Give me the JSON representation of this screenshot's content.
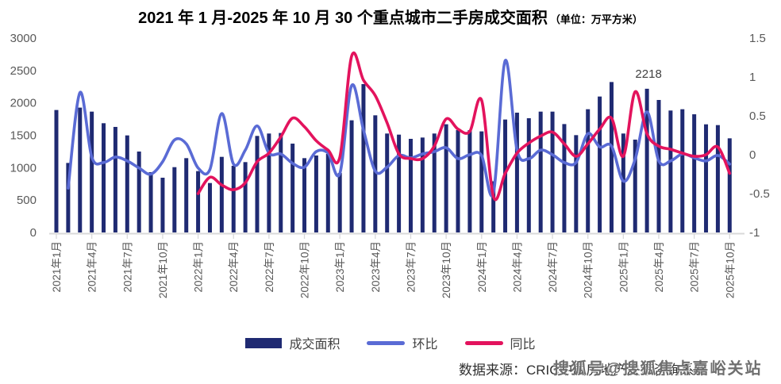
{
  "title": {
    "main": "2021 年 1 月-2025 年 10 月 30 个重点城市二手房成交面积",
    "unit": "（单位：万平方米）"
  },
  "legend": {
    "items": [
      {
        "label": "成交面积",
        "type": "bar",
        "color": "#1F2A72"
      },
      {
        "label": "环比",
        "type": "line",
        "color": "#5A6BD5"
      },
      {
        "label": "同比",
        "type": "line",
        "color": "#E3135D"
      }
    ]
  },
  "footer": {
    "source": "数据来源：CRIC中国房地产决策咨询系统",
    "watermark": "搜狐号@搜狐焦点嘉峪关站"
  },
  "colors": {
    "bar": "#1F2A72",
    "mom_line": "#5A6BD5",
    "yoy_line": "#E3135D",
    "axis_text": "#595959",
    "axis_line": "#D9D9D9",
    "annotation": "#404040"
  },
  "chart_data": {
    "type": "combo",
    "subtypes": [
      "bar",
      "line",
      "line"
    ],
    "title": "2021 年 1 月-2025 年 10 月 30 个重点城市二手房成交面积",
    "unit_label": "（单位：万平方米）",
    "legend_position": "bottom",
    "grid": false,
    "categories": [
      "2021年1月",
      "2021年2月",
      "2021年3月",
      "2021年4月",
      "2021年5月",
      "2021年6月",
      "2021年7月",
      "2021年8月",
      "2021年9月",
      "2021年10月",
      "2021年11月",
      "2021年12月",
      "2022年1月",
      "2022年2月",
      "2022年3月",
      "2022年4月",
      "2022年5月",
      "2022年6月",
      "2022年7月",
      "2022年8月",
      "2022年9月",
      "2022年10月",
      "2022年11月",
      "2022年12月",
      "2023年1月",
      "2023年2月",
      "2023年3月",
      "2023年4月",
      "2023年5月",
      "2023年6月",
      "2023年7月",
      "2023年8月",
      "2023年9月",
      "2023年10月",
      "2023年11月",
      "2023年12月",
      "2024年1月",
      "2024年2月",
      "2024年3月",
      "2024年4月",
      "2024年5月",
      "2024年6月",
      "2024年7月",
      "2024年8月",
      "2024年9月",
      "2024年10月",
      "2024年11月",
      "2024年12月",
      "2025年1月",
      "2025年2月",
      "2025年3月",
      "2025年4月",
      "2025年5月",
      "2025年6月",
      "2025年7月",
      "2025年8月",
      "2025年9月",
      "2025年10月"
    ],
    "x_tick_interval": 3,
    "left_axis": {
      "min": 0,
      "max": 3000,
      "ticks": [
        3000,
        2500,
        2000,
        1500,
        1000,
        500,
        0
      ]
    },
    "right_axis": {
      "min": -1,
      "max": 1.5,
      "ticks": [
        1.5,
        1,
        0.5,
        0,
        -0.5,
        -1
      ]
    },
    "series": [
      {
        "name": "成交面积",
        "type": "bar",
        "axis": "left",
        "color": "#1F2A72",
        "values": [
          1890,
          1073,
          1927,
          1865,
          1686,
          1629,
          1498,
          1249,
          931,
          845,
          1008,
          1147,
          947,
          763,
          1167,
          1029,
          1086,
          1490,
          1527,
          1535,
          1371,
          1147,
          1188,
          1212,
          918,
          1731,
          2290,
          1808,
          1527,
          1510,
          1445,
          1465,
          1527,
          1670,
          1580,
          1578,
          1560,
          790,
          1743,
          1849,
          1763,
          1865,
          1865,
          1673,
          1502,
          1902,
          2098,
          2322,
          1527,
          1433,
          2218,
          2045,
          1882,
          1902,
          1824,
          1669,
          1657,
          1453
        ]
      },
      {
        "name": "环比",
        "type": "line",
        "axis": "right",
        "color": "#5A6BD5",
        "values": [
          null,
          -0.43,
          0.8,
          -0.03,
          -0.1,
          -0.03,
          -0.08,
          -0.17,
          -0.25,
          -0.09,
          0.19,
          0.14,
          -0.17,
          -0.19,
          0.53,
          -0.12,
          0.06,
          0.37,
          0.02,
          0.01,
          -0.11,
          -0.16,
          0.04,
          0.02,
          -0.24,
          0.89,
          0.32,
          -0.21,
          -0.16,
          -0.01,
          -0.04,
          0.01,
          0.04,
          0.09,
          -0.05,
          0.0,
          -0.01,
          -0.49,
          1.21,
          0.06,
          -0.05,
          0.06,
          0.0,
          -0.1,
          -0.1,
          0.27,
          0.1,
          0.11,
          -0.34,
          -0.06,
          0.55,
          -0.08,
          -0.08,
          0.01,
          -0.04,
          -0.08,
          -0.01,
          -0.12
        ]
      },
      {
        "name": "同比",
        "type": "line",
        "axis": "right",
        "color": "#E3135D",
        "values": [
          null,
          null,
          null,
          null,
          null,
          null,
          null,
          null,
          null,
          null,
          null,
          null,
          -0.5,
          -0.29,
          -0.39,
          -0.45,
          -0.36,
          -0.09,
          0.02,
          0.23,
          0.47,
          0.36,
          0.18,
          0.06,
          -0.03,
          1.27,
          0.96,
          0.76,
          0.41,
          0.01,
          -0.05,
          -0.05,
          0.11,
          0.46,
          0.33,
          0.3,
          0.7,
          -0.54,
          -0.24,
          0.02,
          0.15,
          0.24,
          0.29,
          0.14,
          -0.02,
          0.14,
          0.33,
          0.47,
          -0.02,
          0.81,
          0.27,
          0.11,
          0.07,
          0.02,
          -0.02,
          0.0,
          0.1,
          -0.24
        ]
      }
    ],
    "annotation": {
      "text": "2218",
      "category": "2025年3月",
      "category_index": 50
    }
  }
}
